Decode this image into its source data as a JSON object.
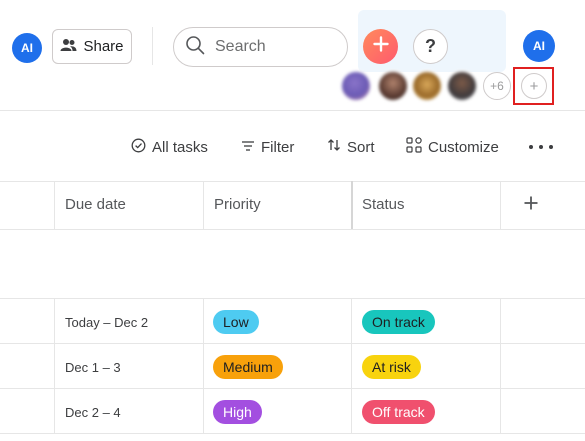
{
  "header": {
    "user_initials": "AI",
    "share_label": "Share",
    "search_placeholder": "Search",
    "help_label": "?",
    "members_more": "+6",
    "add_member_label": "+"
  },
  "toolbar": {
    "all_tasks": "All tasks",
    "filter": "Filter",
    "sort": "Sort",
    "customize": "Customize"
  },
  "table": {
    "columns": [
      "Due date",
      "Priority",
      "Status"
    ],
    "rows": [
      {
        "due": "Today – Dec 2",
        "priority": "Low",
        "status": "On track"
      },
      {
        "due": "Dec 1 – 3",
        "priority": "Medium",
        "status": "At risk"
      },
      {
        "due": "Dec 2 – 4",
        "priority": "High",
        "status": "Off track"
      }
    ]
  },
  "colors": {
    "avatar": "#1f6feb",
    "low": "#4ecbf1",
    "medium": "#f8a10b",
    "high": "#a34fe0",
    "on_track": "#18c6bd",
    "at_risk": "#f8d30e",
    "off_track": "#f0506e"
  }
}
